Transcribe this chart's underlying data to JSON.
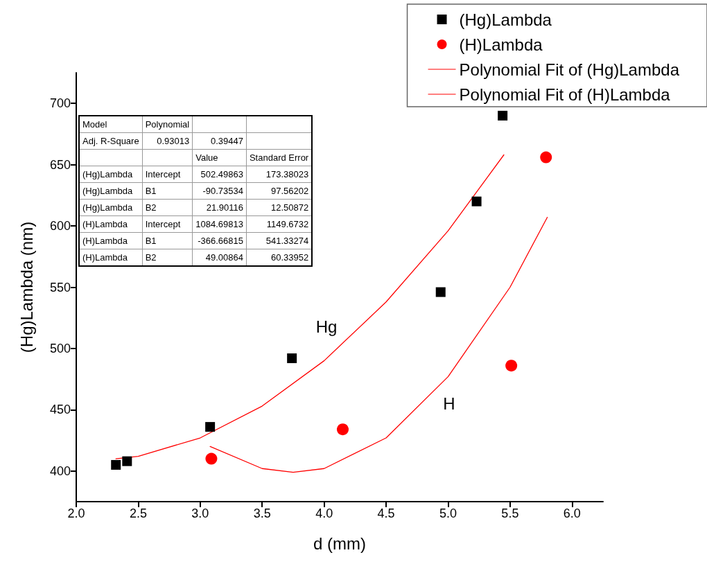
{
  "chart_data": {
    "type": "scatter",
    "xlabel": "d (mm)",
    "ylabel": "(Hg)Lambda (nm)",
    "xlim": [
      2.0,
      6.25
    ],
    "xticks": [
      {
        "value": 2,
        "label": "2.0"
      },
      2.5,
      {
        "value": 3,
        "label": "3.0"
      },
      3.5,
      {
        "value": 4,
        "label": "4.0"
      },
      4.5,
      {
        "value": 5,
        "label": "5.0"
      },
      5.5,
      {
        "value": 6,
        "label": "6.0"
      }
    ],
    "ylim": [
      375,
      725
    ],
    "yticks": [
      400,
      450,
      500,
      550,
      600,
      650,
      700
    ],
    "grid": false,
    "legend": "top right",
    "series": [
      {
        "name": "(Hg)Lambda",
        "marker": "square",
        "color": "#000000",
        "x": [
          2.32,
          2.41,
          3.08,
          3.74,
          4.94,
          5.23,
          5.44
        ],
        "values": [
          405,
          408,
          436,
          492,
          546,
          620,
          690
        ]
      },
      {
        "name": "(H)Lambda",
        "marker": "circle",
        "color": "#ff0000",
        "x": [
          3.09,
          4.15,
          5.51,
          5.79
        ],
        "values": [
          410,
          434,
          486,
          656
        ]
      },
      {
        "name": "Polynomial Fit of (Hg)Lambda",
        "type": "line",
        "marker": "none",
        "color": "#ff0000",
        "x": [
          2.32,
          2.5,
          3.0,
          3.5,
          4.0,
          4.5,
          5.0,
          5.45
        ],
        "values": [
          410,
          412,
          427,
          453,
          490,
          538,
          596,
          658
        ]
      },
      {
        "name": "Polynomial Fit of (H)Lambda",
        "type": "line",
        "marker": "none",
        "color": "#ff0000",
        "x": [
          3.08,
          3.5,
          3.75,
          4.0,
          4.5,
          5.0,
          5.5,
          5.8
        ],
        "values": [
          420,
          402,
          399,
          402,
          427,
          477,
          550,
          607
        ]
      }
    ],
    "annotations": [
      "Hg",
      "H",
      "Model\tPolynomial\t\t",
      "Adj. R-Square\t0.93013\t0.39447\t",
      "\t\tValue\tStandard Error",
      "(Hg)Lambda\tIntercept\t502.49863\t173.38023",
      "(Hg)Lambda\tB1\t-90.73534\t97.56202",
      "(Hg)Lambda\tB2\t21.90116\t12.50872",
      "(H)Lambda\tIntercept\t1084.69813\t1149.6732",
      "(H)Lambda\tB1\t-366.66815\t541.33274",
      "(H)Lambda\tB2\t49.00864\t60.33952"
    ]
  }
}
